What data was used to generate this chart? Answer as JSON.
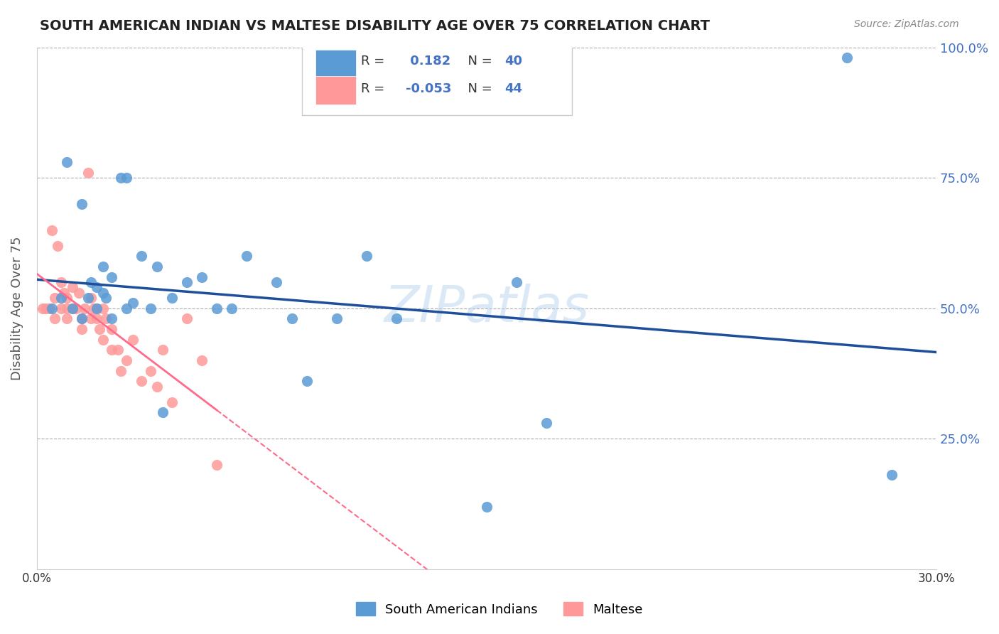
{
  "title": "SOUTH AMERICAN INDIAN VS MALTESE DISABILITY AGE OVER 75 CORRELATION CHART",
  "source": "Source: ZipAtlas.com",
  "xlabel_bottom": "",
  "ylabel": "Disability Age Over 75",
  "xlim": [
    0.0,
    0.3
  ],
  "ylim": [
    0.0,
    1.0
  ],
  "xticks": [
    0.0,
    0.3
  ],
  "xtick_labels": [
    "0.0%",
    "30.0%"
  ],
  "ytick_positions": [
    0.25,
    0.5,
    0.75,
    1.0
  ],
  "ytick_labels": [
    "25.0%",
    "50.0%",
    "75.0%",
    "100.0%"
  ],
  "blue_color": "#5B9BD5",
  "pink_color": "#FF9999",
  "blue_line_color": "#1F4E9B",
  "pink_line_color": "#FF6B8A",
  "blue_R": 0.182,
  "blue_N": 40,
  "pink_R": -0.053,
  "pink_N": 44,
  "watermark": "ZIPatlas",
  "legend_label_blue": "South American Indians",
  "legend_label_pink": "Maltese",
  "blue_scatter_x": [
    0.005,
    0.008,
    0.01,
    0.012,
    0.015,
    0.015,
    0.017,
    0.018,
    0.02,
    0.02,
    0.022,
    0.022,
    0.023,
    0.025,
    0.025,
    0.028,
    0.03,
    0.03,
    0.032,
    0.035,
    0.038,
    0.04,
    0.042,
    0.045,
    0.05,
    0.055,
    0.06,
    0.065,
    0.07,
    0.08,
    0.085,
    0.09,
    0.1,
    0.11,
    0.12,
    0.15,
    0.16,
    0.17,
    0.27,
    0.285
  ],
  "blue_scatter_y": [
    0.5,
    0.52,
    0.78,
    0.5,
    0.48,
    0.7,
    0.52,
    0.55,
    0.5,
    0.54,
    0.53,
    0.58,
    0.52,
    0.48,
    0.56,
    0.75,
    0.75,
    0.5,
    0.51,
    0.6,
    0.5,
    0.58,
    0.3,
    0.52,
    0.55,
    0.56,
    0.5,
    0.5,
    0.6,
    0.55,
    0.48,
    0.36,
    0.48,
    0.6,
    0.48,
    0.12,
    0.55,
    0.28,
    0.98,
    0.18
  ],
  "pink_scatter_x": [
    0.002,
    0.003,
    0.004,
    0.005,
    0.006,
    0.006,
    0.007,
    0.008,
    0.008,
    0.009,
    0.01,
    0.01,
    0.01,
    0.012,
    0.012,
    0.013,
    0.014,
    0.015,
    0.015,
    0.016,
    0.017,
    0.018,
    0.018,
    0.019,
    0.02,
    0.02,
    0.021,
    0.022,
    0.022,
    0.023,
    0.025,
    0.025,
    0.027,
    0.028,
    0.03,
    0.032,
    0.035,
    0.038,
    0.04,
    0.042,
    0.045,
    0.05,
    0.055,
    0.06
  ],
  "pink_scatter_y": [
    0.5,
    0.5,
    0.5,
    0.65,
    0.48,
    0.52,
    0.62,
    0.55,
    0.5,
    0.53,
    0.5,
    0.48,
    0.52,
    0.54,
    0.5,
    0.5,
    0.53,
    0.48,
    0.46,
    0.5,
    0.76,
    0.52,
    0.48,
    0.5,
    0.5,
    0.48,
    0.46,
    0.5,
    0.44,
    0.48,
    0.42,
    0.46,
    0.42,
    0.38,
    0.4,
    0.44,
    0.36,
    0.38,
    0.35,
    0.42,
    0.32,
    0.48,
    0.4,
    0.2
  ]
}
